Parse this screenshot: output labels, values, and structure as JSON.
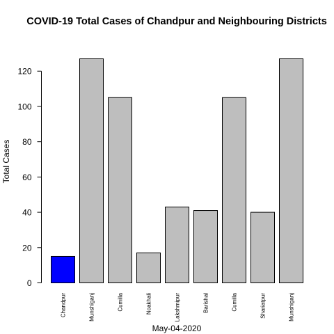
{
  "chart_data": {
    "type": "bar",
    "title": "COVID-19 Total Cases of Chandpur and Neighbouring Districts",
    "xlabel": "May-04-2020",
    "ylabel": "Total Cases",
    "categories": [
      "Chandpur",
      "Munshiganj",
      "Cumilla",
      "Noakhali",
      "Lakshmipur",
      "Barishal",
      "Cumilla",
      "Shariatpur",
      "Munshiganj"
    ],
    "values": [
      15,
      127,
      105,
      17,
      43,
      41,
      105,
      40,
      127
    ],
    "colors": [
      "#0000ff",
      "#bebebe",
      "#bebebe",
      "#bebebe",
      "#bebebe",
      "#bebebe",
      "#bebebe",
      "#bebebe",
      "#bebebe"
    ],
    "ylim": [
      0,
      127
    ],
    "yticks": [
      0,
      20,
      40,
      60,
      80,
      100,
      120
    ],
    "grid": false,
    "legend": "none"
  }
}
